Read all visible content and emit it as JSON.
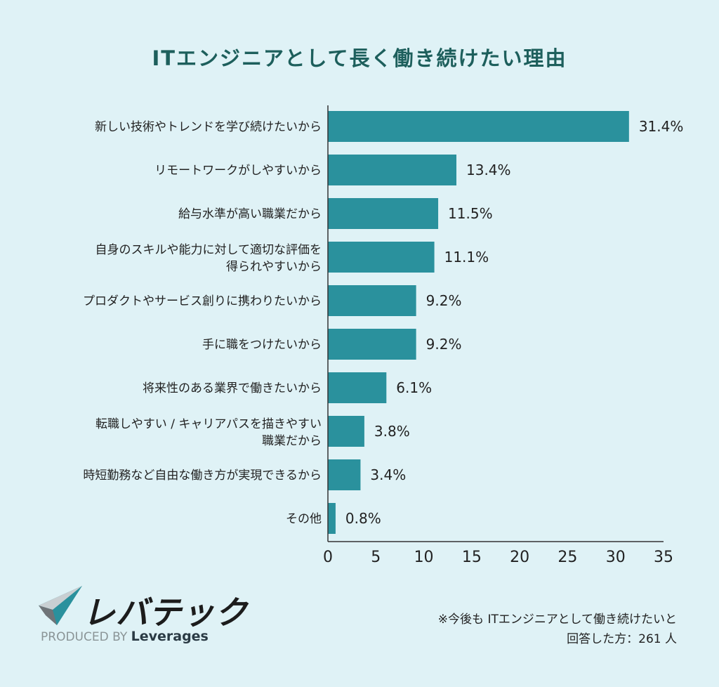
{
  "title": "ITエンジニアとして長く働き続けたい理由",
  "colors": {
    "bar": "#2a919d",
    "title": "#1d5f5c",
    "background": "#dff2f6"
  },
  "chart_data": {
    "type": "bar",
    "orientation": "horizontal",
    "title": "ITエンジニアとして長く働き続けたい理由",
    "categories": [
      [
        "新しい技術やトレンドを学び続けたいから"
      ],
      [
        "リモートワークがしやすいから"
      ],
      [
        "給与水準が高い職業だから"
      ],
      [
        "自身のスキルや能力に対して適切な評価を",
        "得られやすいから"
      ],
      [
        "プロダクトやサービス創りに携わりたいから"
      ],
      [
        "手に職をつけたいから"
      ],
      [
        "将来性のある業界で働きたいから"
      ],
      [
        "転職しやすい / キャリアパスを描きやすい",
        "職業だから"
      ],
      [
        "時短勤務など自由な働き方が実現できるから"
      ],
      [
        "その他"
      ]
    ],
    "values": [
      31.4,
      13.4,
      11.5,
      11.1,
      9.2,
      9.2,
      6.1,
      3.8,
      3.4,
      0.8
    ],
    "value_labels": [
      "31.4%",
      "13.4%",
      "11.5%",
      "11.1%",
      "9.2%",
      "9.2%",
      "6.1%",
      "3.8%",
      "3.4%",
      "0.8%"
    ],
    "xlim": [
      0,
      35
    ],
    "xticks": [
      0,
      5,
      10,
      15,
      20,
      25,
      30,
      35
    ],
    "xlabel": "",
    "ylabel": "",
    "grid": false
  },
  "logo": {
    "brand": "レバテック",
    "produced_by": "PRODUCED BY",
    "company": "Leverages"
  },
  "note": {
    "line1": "※今後も ITエンジニアとして働き続けたいと",
    "line2": "回答した方：261 人"
  }
}
